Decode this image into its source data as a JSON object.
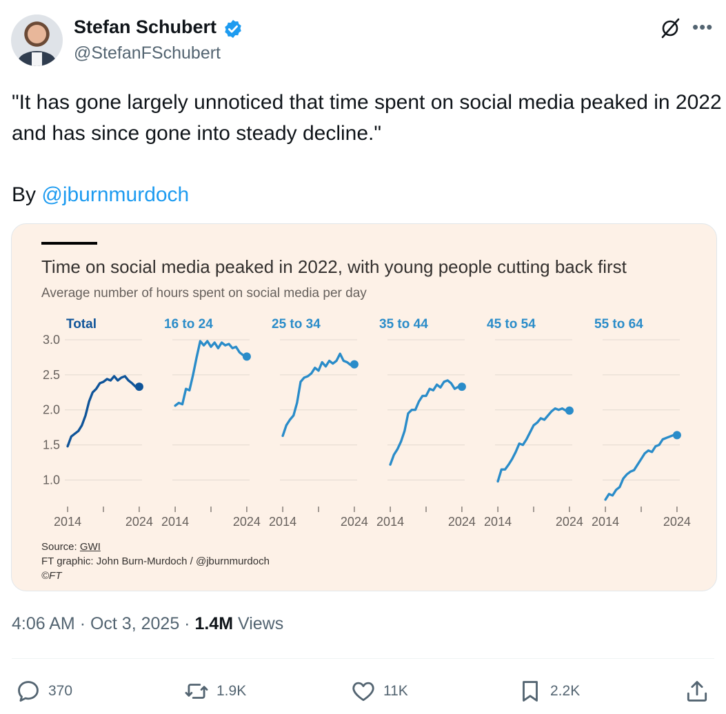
{
  "author": {
    "name": "Stefan Schubert",
    "handle": "@StefanFSchubert",
    "avatar_icon": "profile-photo",
    "verified": true
  },
  "tweet": {
    "text": "\"It has gone largely unnoticed that time spent on social media peaked in 2022 and has since gone into steady decline.\"",
    "by_prefix": "By",
    "by_mention": "@jburnmurdoch"
  },
  "chart_card": {
    "title": "Time on social media peaked in 2022, with young people cutting back first",
    "subtitle": "Average number of hours spent on social media per day",
    "source_label": "Source:",
    "source_name": "GWI",
    "credit": "FT graphic: John Burn-Murdoch / @jburnmurdoch",
    "copyright": "©FT"
  },
  "chart_data": {
    "type": "line",
    "title": "Time on social media peaked in 2022, with young people cutting back first",
    "subtitle": "Average number of hours spent on social media per day",
    "ylim": [
      0.7,
      3.0
    ],
    "yticks": [
      1.0,
      1.5,
      2.0,
      2.5,
      3.0
    ],
    "ytick_labels": [
      "1.0",
      "1.5",
      "2.0",
      "2.5",
      "3.0"
    ],
    "xlim": [
      2013.8,
      2024.2
    ],
    "xtick_labels": [
      "2014",
      "2024"
    ],
    "grid": true,
    "panels": [
      {
        "name": "Total",
        "color": "#0f5499",
        "x": [
          2014,
          2014.5,
          2015,
          2015.5,
          2016,
          2016.5,
          2017,
          2017.5,
          2018,
          2018.5,
          2019,
          2019.5,
          2020,
          2020.5,
          2021,
          2021.5,
          2022,
          2022.5,
          2023,
          2023.5,
          2024
        ],
        "y": [
          1.48,
          1.62,
          1.66,
          1.7,
          1.78,
          1.92,
          2.12,
          2.25,
          2.3,
          2.38,
          2.4,
          2.44,
          2.42,
          2.48,
          2.42,
          2.46,
          2.48,
          2.42,
          2.38,
          2.33,
          2.33
        ]
      },
      {
        "name": "16 to 24",
        "color": "#2a8cc9",
        "x": [
          2014,
          2014.5,
          2015,
          2015.5,
          2016,
          2016.5,
          2017,
          2017.5,
          2018,
          2018.5,
          2019,
          2019.5,
          2020,
          2020.5,
          2021,
          2021.5,
          2022,
          2022.5,
          2023,
          2023.5,
          2024
        ],
        "y": [
          2.06,
          2.1,
          2.08,
          2.3,
          2.28,
          2.5,
          2.75,
          2.98,
          2.92,
          2.98,
          2.9,
          2.96,
          2.88,
          2.96,
          2.92,
          2.94,
          2.88,
          2.9,
          2.82,
          2.78,
          2.76
        ]
      },
      {
        "name": "25 to 34",
        "color": "#2a8cc9",
        "x": [
          2014,
          2014.5,
          2015,
          2015.5,
          2016,
          2016.5,
          2017,
          2017.5,
          2018,
          2018.5,
          2019,
          2019.5,
          2020,
          2020.5,
          2021,
          2021.5,
          2022,
          2022.5,
          2023,
          2023.5,
          2024
        ],
        "y": [
          1.63,
          1.78,
          1.86,
          1.92,
          2.1,
          2.4,
          2.46,
          2.48,
          2.52,
          2.6,
          2.56,
          2.68,
          2.62,
          2.7,
          2.66,
          2.7,
          2.8,
          2.7,
          2.68,
          2.64,
          2.65
        ]
      },
      {
        "name": "35 to 44",
        "color": "#2a8cc9",
        "x": [
          2014,
          2014.5,
          2015,
          2015.5,
          2016,
          2016.5,
          2017,
          2017.5,
          2018,
          2018.5,
          2019,
          2019.5,
          2020,
          2020.5,
          2021,
          2021.5,
          2022,
          2022.5,
          2023,
          2023.5,
          2024
        ],
        "y": [
          1.22,
          1.36,
          1.44,
          1.55,
          1.7,
          1.95,
          2.0,
          2.0,
          2.12,
          2.2,
          2.2,
          2.3,
          2.28,
          2.36,
          2.32,
          2.4,
          2.42,
          2.38,
          2.3,
          2.33,
          2.33
        ]
      },
      {
        "name": "45 to 54",
        "color": "#2a8cc9",
        "x": [
          2014,
          2014.5,
          2015,
          2015.5,
          2016,
          2016.5,
          2017,
          2017.5,
          2018,
          2018.5,
          2019,
          2019.5,
          2020,
          2020.5,
          2021,
          2021.5,
          2022,
          2022.5,
          2023,
          2023.5,
          2024
        ],
        "y": [
          0.98,
          1.15,
          1.15,
          1.22,
          1.3,
          1.4,
          1.52,
          1.5,
          1.58,
          1.68,
          1.78,
          1.82,
          1.88,
          1.86,
          1.92,
          1.98,
          2.02,
          2.0,
          2.02,
          1.99,
          1.99
        ]
      },
      {
        "name": "55 to 64",
        "color": "#2a8cc9",
        "x": [
          2014,
          2014.5,
          2015,
          2015.5,
          2016,
          2016.5,
          2017,
          2017.5,
          2018,
          2018.5,
          2019,
          2019.5,
          2020,
          2020.5,
          2021,
          2021.5,
          2022,
          2022.5,
          2023,
          2023.5,
          2024
        ],
        "y": [
          0.72,
          0.8,
          0.78,
          0.86,
          0.9,
          1.02,
          1.08,
          1.12,
          1.14,
          1.22,
          1.3,
          1.38,
          1.42,
          1.4,
          1.48,
          1.5,
          1.58,
          1.6,
          1.62,
          1.64,
          1.64
        ]
      }
    ]
  },
  "meta": {
    "time": "4:06 AM",
    "dot1": "·",
    "date": "Oct 3, 2025",
    "dot2": "·",
    "views_count": "1.4M",
    "views_label": "Views"
  },
  "actions": {
    "replies": "370",
    "reposts": "1.9K",
    "likes": "11K",
    "bookmarks": "2.2K"
  },
  "icons": {
    "more": "more-horizontal-icon",
    "grok": "grok-icon",
    "reply": "reply-icon",
    "repost": "repost-icon",
    "like": "heart-icon",
    "bookmark": "bookmark-icon",
    "share": "share-icon"
  },
  "colors": {
    "link_blue": "#1d9bf0",
    "ft_background": "#fdf1e7",
    "total_series": "#0f5499",
    "age_series": "#2a8cc9"
  }
}
